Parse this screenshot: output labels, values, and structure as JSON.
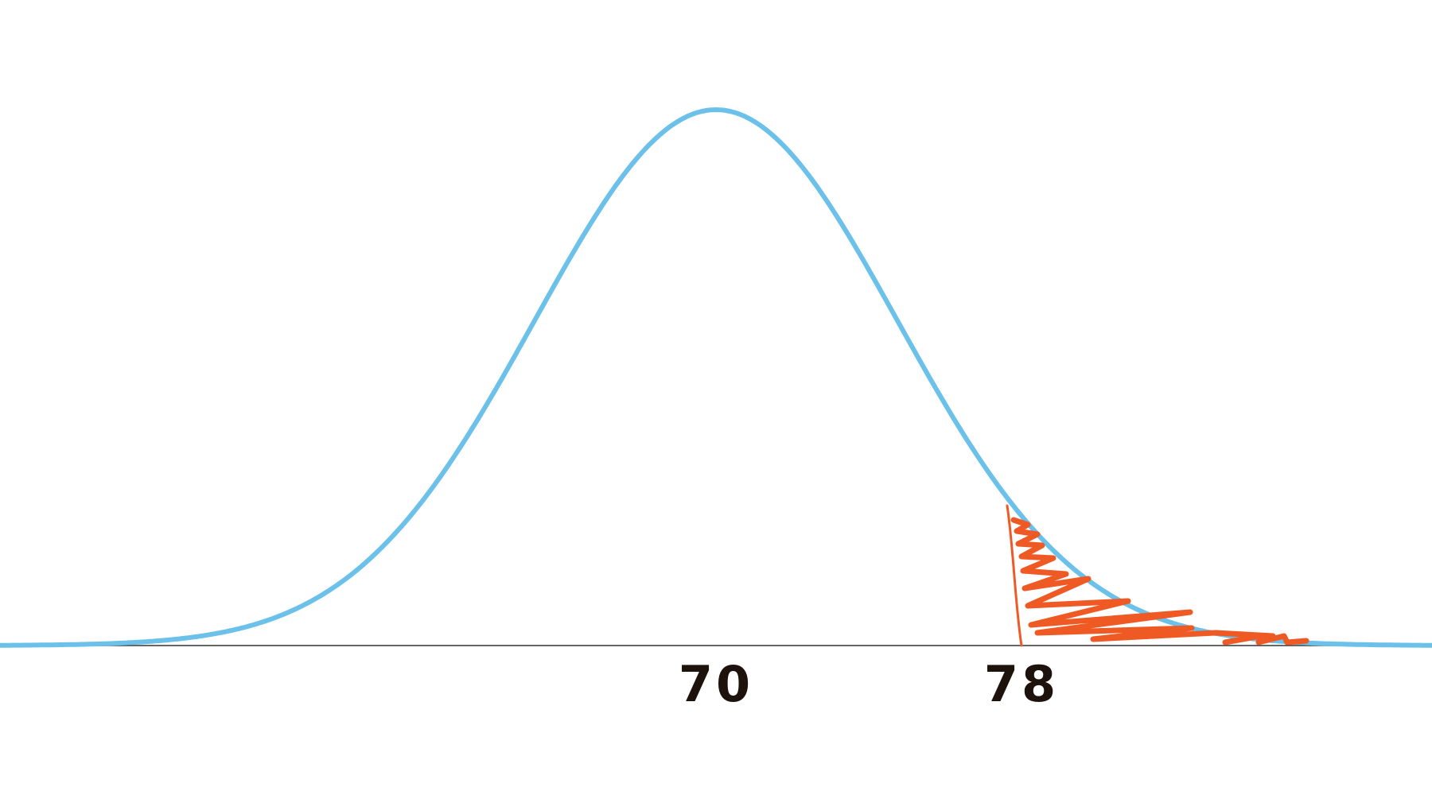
{
  "chart_data": {
    "type": "area",
    "title": "",
    "xlabel": "",
    "ylabel": "",
    "distribution": "normal",
    "mean": 70,
    "x_ticks": [
      {
        "value": 70,
        "label": "70"
      },
      {
        "value": 78,
        "label": "78"
      }
    ],
    "shaded_region": {
      "from": 78,
      "to": "right tail",
      "style": "hand-drawn scribble"
    },
    "colors": {
      "curve": "#6bc1ea",
      "shading": "#ef5a24",
      "baseline": "#333333",
      "tick_text": "#1e120c"
    }
  }
}
